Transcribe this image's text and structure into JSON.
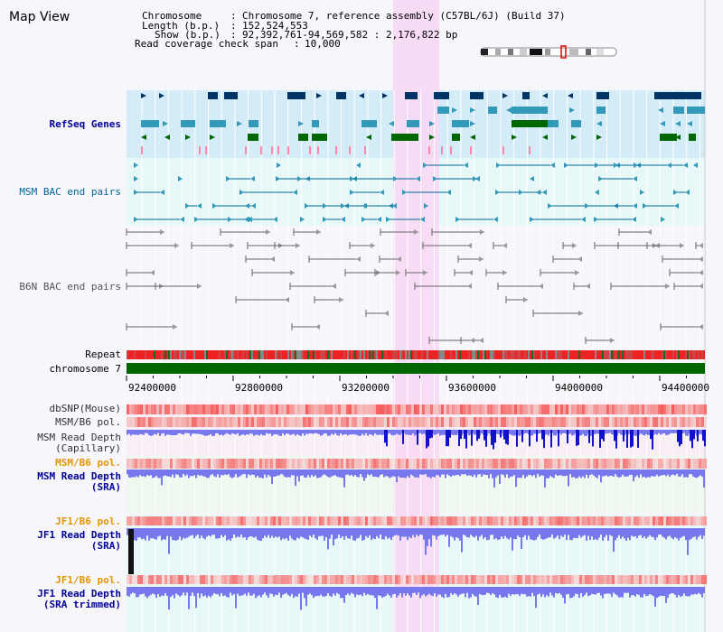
{
  "header": {
    "view_title": "Map View",
    "info_lines": [
      {
        "key": "Chromosome",
        "value": "Chromosome 7, reference assembly (C57BL/6J) (Build 37)"
      },
      {
        "key": "Length (b.p.)",
        "value": "152,524,553"
      },
      {
        "key": "Show (b.p.)",
        "value": "92,392,761-94,569,582 : 2,176,822 bp"
      },
      {
        "key": "Read coverage check span",
        "value": "10,000"
      }
    ]
  },
  "tracks": [
    {
      "id": "refseq",
      "label": "RefSeq Genes",
      "color": "#000099"
    },
    {
      "id": "msm-bac",
      "label": "MSM BAC end pairs",
      "color": "#006699"
    },
    {
      "id": "b6n-bac",
      "label": "B6N BAC end pairs",
      "color": "#555555"
    },
    {
      "id": "repeat",
      "label": "Repeat",
      "color": "#000000"
    },
    {
      "id": "chromosome",
      "label": "chromosome 7",
      "color": "#000000"
    },
    {
      "id": "dbsnp",
      "label": "dbSNP(Mouse)",
      "color": "#333333"
    },
    {
      "id": "msm-b6-pol",
      "label": "MSM/B6 pol.",
      "color": "#333333"
    },
    {
      "id": "msm-depth-cap",
      "label": "MSM Read Depth",
      "sublabel": "(Capillary)",
      "color": "#333333"
    },
    {
      "id": "msm-b6-pol-2",
      "label": "MSM/B6 pol.",
      "color": "#e69500"
    },
    {
      "id": "msm-depth-sra",
      "label": "MSM Read Depth",
      "sublabel": "(SRA)",
      "color": "#000099"
    },
    {
      "id": "jf1-b6-pol",
      "label": "JF1/B6 pol.",
      "color": "#e69500"
    },
    {
      "id": "jf1-depth-sra",
      "label": "JF1 Read Depth",
      "sublabel": "(SRA)",
      "color": "#000099"
    },
    {
      "id": "jf1-b6-pol-2",
      "label": "JF1/B6 pol.",
      "color": "#e69500"
    },
    {
      "id": "jf1-depth-trim",
      "label": "JF1 Read Depth",
      "sublabel": "(SRA trimmed)",
      "color": "#000099"
    }
  ],
  "axis": {
    "ticks": [
      "92400000",
      "92800000",
      "93200000",
      "93600000",
      "94000000",
      "94400000"
    ]
  },
  "colors": {
    "refseq_band": "#d3ecf8",
    "bac_band": "#e8f8f8",
    "highlight": "#f8d8f4",
    "gene_blue": "#003366",
    "gene_teal": "#3399bb",
    "gene_green": "#006600",
    "chromosome_bar": "#006600",
    "depth_blue": "#3333ee",
    "pol_red": "#ee3333"
  }
}
